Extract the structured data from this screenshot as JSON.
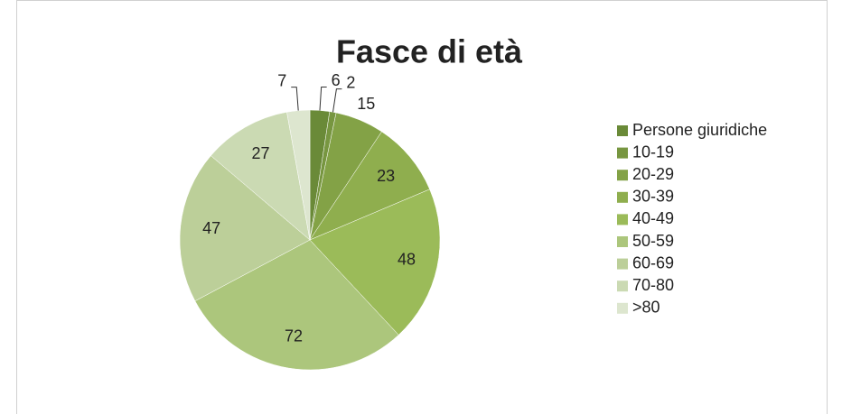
{
  "chart_data": {
    "type": "pie",
    "title": "Fasce di età",
    "categories": [
      "Persone giuridiche",
      "10-19",
      "20-29",
      "30-39",
      "40-49",
      "50-59",
      "60-69",
      "70-80",
      ">80"
    ],
    "values": [
      6,
      2,
      15,
      23,
      48,
      72,
      47,
      27,
      7
    ],
    "colors": [
      "#6a8a38",
      "#779640",
      "#83a246",
      "#8fae4e",
      "#9bbb59",
      "#acc67c",
      "#bccf99",
      "#cbdab3",
      "#dde6cf"
    ],
    "legend": "right"
  }
}
